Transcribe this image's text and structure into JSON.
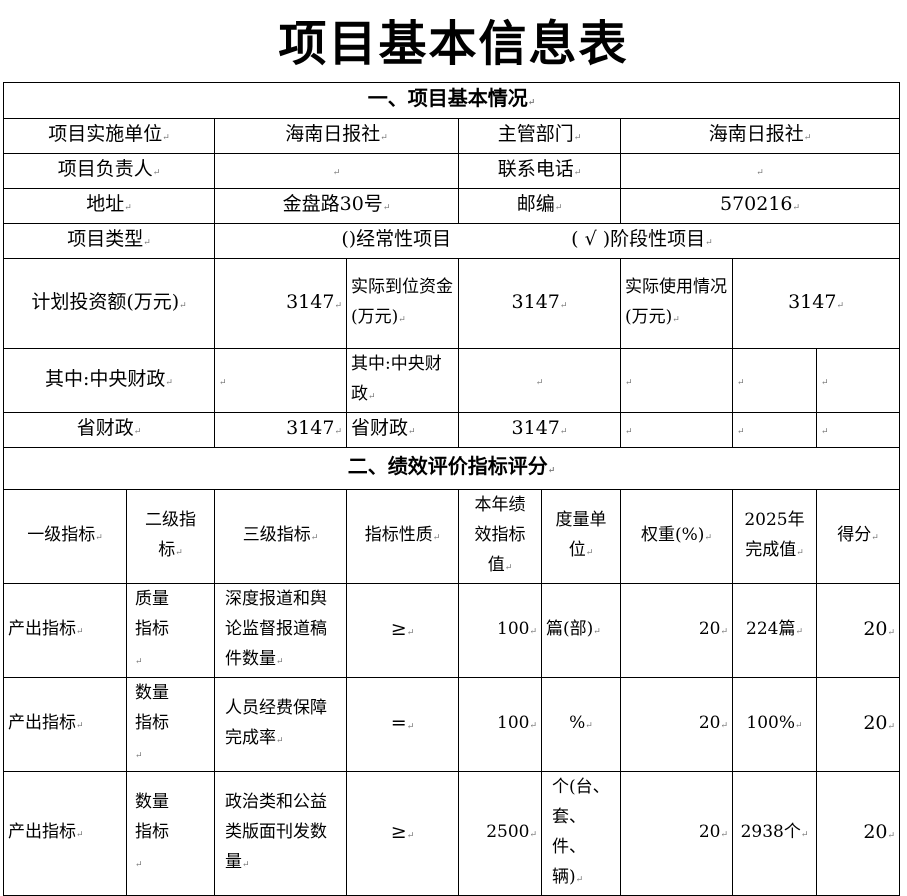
{
  "title": "项目基本信息表",
  "section1": {
    "heading": "一、项目基本情况",
    "unit_label": "项目实施单位",
    "unit_value": "海南日报社",
    "dept_label": "主管部门",
    "dept_value": "海南日报社",
    "leader_label": "项目负责人",
    "leader_value": "",
    "phone_label": "联系电话",
    "phone_value": "",
    "address_label": "地址",
    "address_value": "金盘路30号",
    "postcode_label": "邮编",
    "postcode_value": "570216",
    "type_label": "项目类型",
    "type_option1": "()经常性项目",
    "type_option2": "( √ )阶段性项目",
    "plan_label": "计划投资额(万元)",
    "plan_value": "3147",
    "actual_funds_label": "实际到位资金(万元)",
    "actual_funds_value": "3147",
    "actual_use_label": "实际使用情况(万元)",
    "actual_use_value": "3147",
    "central_label": "其中:中央财政",
    "central_value": "",
    "central_label2": "其中:中央财政",
    "province_label": "省财政",
    "province_value": "3147",
    "province_label2": "省财政",
    "province_value2": "3147"
  },
  "section2": {
    "heading": "二、绩效评价指标评分",
    "columns": [
      "一级指标",
      "二级指标",
      "三级指标",
      "指标性质",
      "本年绩效指标值",
      "度量单位",
      "权重(%)",
      "2025年完成值",
      "得分"
    ],
    "rows": [
      [
        "产出指标",
        "质量指标",
        "深度报道和舆论监督报道稿件数量",
        "≥",
        "100",
        "篇(部)",
        "20",
        "224篇",
        "20"
      ],
      [
        "产出指标",
        "数量指标",
        "人员经费保障完成率",
        "=",
        "100",
        "%",
        "20",
        "100%",
        "20"
      ],
      [
        "产出指标",
        "数量指标",
        "政治类和公益类版面刊发数量",
        "≥",
        "2500",
        "个(台、套、件、辆)",
        "20",
        "2938个",
        "20"
      ]
    ]
  }
}
